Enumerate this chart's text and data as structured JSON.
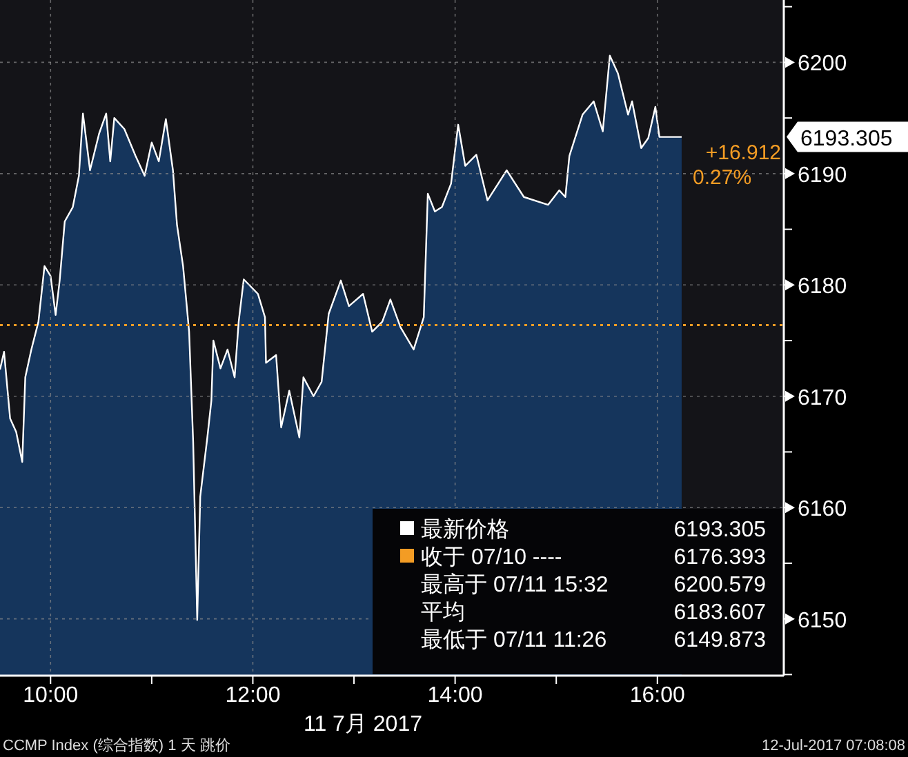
{
  "chart_data": {
    "type": "area",
    "xlabel": "11 7月 2017",
    "x": [
      9.5,
      9.54,
      9.6,
      9.66,
      9.72,
      9.75,
      9.81,
      9.88,
      9.94,
      10.0,
      10.05,
      10.09,
      10.14,
      10.22,
      10.28,
      10.32,
      10.39,
      10.48,
      10.55,
      10.59,
      10.63,
      10.73,
      10.84,
      10.93,
      11.0,
      11.07,
      11.14,
      11.21,
      11.25,
      11.31,
      11.37,
      11.41,
      11.45,
      11.48,
      11.55,
      11.59,
      11.61,
      11.68,
      11.75,
      11.82,
      11.86,
      11.91,
      12.05,
      12.12,
      12.13,
      12.23,
      12.28,
      12.36,
      12.46,
      12.5,
      12.6,
      12.68,
      12.75,
      12.87,
      12.95,
      13.09,
      13.18,
      13.28,
      13.36,
      13.46,
      13.59,
      13.69,
      13.73,
      13.8,
      13.87,
      13.96,
      14.03,
      14.1,
      14.21,
      14.32,
      14.51,
      14.68,
      14.92,
      15.03,
      15.09,
      15.13,
      15.26,
      15.37,
      15.46,
      15.53,
      15.61,
      15.71,
      15.75,
      15.84,
      15.91,
      15.95,
      15.98,
      16.02,
      16.24
    ],
    "series": [
      {
        "color": "#15355c",
        "values": [
          6172.4,
          6174,
          6168,
          6166.8,
          6164.1,
          6171.7,
          6174.2,
          6176.7,
          6181.7,
          6180.8,
          6177.3,
          6180.4,
          6185.7,
          6187,
          6189.8,
          6195.4,
          6190.3,
          6193.6,
          6195.4,
          6191.1,
          6195,
          6194,
          6191.6,
          6189.8,
          6192.8,
          6191.1,
          6194.9,
          6190.3,
          6185.4,
          6181.7,
          6175.8,
          6165.9,
          6149.9,
          6161,
          6166.3,
          6169.6,
          6175,
          6172.5,
          6174.2,
          6171.7,
          6176.7,
          6180.5,
          6179.2,
          6177.1,
          6173,
          6173.7,
          6167.2,
          6170.5,
          6166.3,
          6171.7,
          6170,
          6171.3,
          6177.4,
          6180.4,
          6178.1,
          6179.2,
          6175.8,
          6176.7,
          6178.7,
          6176.2,
          6174.2,
          6177.1,
          6188.2,
          6186.6,
          6187,
          6189.1,
          6194.4,
          6190.7,
          6191.7,
          6187.6,
          6190.3,
          6187.9,
          6187.2,
          6188.5,
          6187.9,
          6191.6,
          6195.3,
          6196.5,
          6193.8,
          6200.6,
          6199,
          6195.3,
          6196.5,
          6192.3,
          6193.2,
          6194.8,
          6196,
          6193.3,
          6193.3
        ]
      }
    ],
    "xlim": [
      9.5,
      17.25
    ],
    "xticks": [
      {
        "value": 10,
        "label": "10:00"
      },
      {
        "value": 11,
        "label": null
      },
      {
        "value": 12,
        "label": "12:00"
      },
      {
        "value": 13,
        "label": null
      },
      {
        "value": 14,
        "label": "14:00"
      },
      {
        "value": 15,
        "label": null
      },
      {
        "value": 16,
        "label": "16:00"
      }
    ],
    "ylim": [
      6144.9,
      6205.6
    ],
    "yticks": [
      {
        "value": 6145,
        "label": null
      },
      6150,
      {
        "value": 6155,
        "label": null
      },
      6160,
      {
        "value": 6165,
        "label": null
      },
      6170,
      {
        "value": 6175,
        "label": null
      },
      6180,
      {
        "value": 6185,
        "label": null
      },
      6190,
      {
        "value": 6195,
        "label": null
      },
      6200,
      {
        "value": 6205,
        "label": null
      }
    ],
    "grid": true,
    "ref_lines": [
      {
        "axis": "y",
        "value": 6176.393,
        "color": "#f39c24",
        "line_style": "dotted"
      }
    ],
    "annotations": [
      "6193.305",
      "+16.912",
      "0.27%",
      "最新价格",
      "6193.305",
      "收于 07/10 ----",
      "6176.393",
      "最高于 07/11 15:32",
      "6200.579",
      "平均",
      "6183.607",
      "最低于 07/11 11:26",
      "6149.873",
      "CCMP Index (综合指数) 1 天  跳价",
      "12-Jul-2017 07:08:08"
    ]
  }
}
